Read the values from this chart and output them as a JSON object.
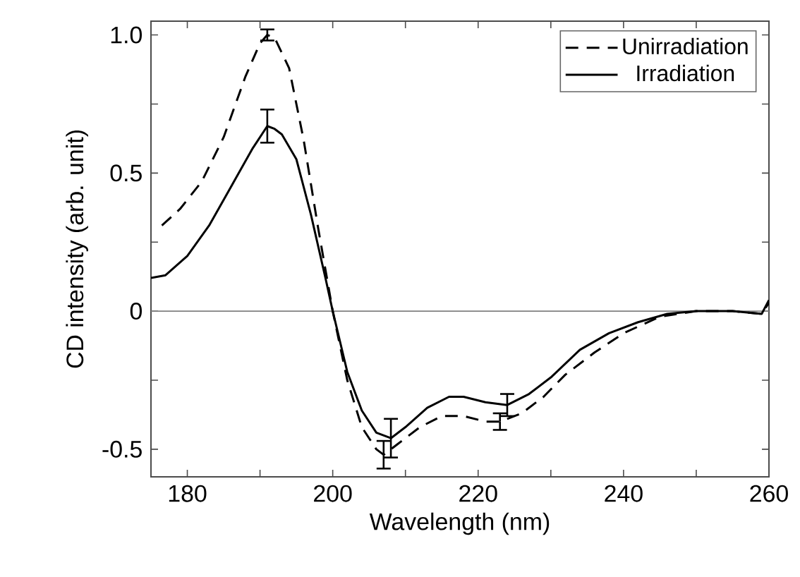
{
  "chart_data": {
    "type": "line",
    "xlabel": "Wavelength (nm)",
    "ylabel": "CD intensity (arb. unit)",
    "xlim": [
      175,
      260
    ],
    "ylim": [
      -0.6,
      1.05
    ],
    "xticks": [
      180,
      {
        "value": 190,
        "label": null
      },
      200,
      {
        "value": 210,
        "label": null
      },
      220,
      {
        "value": 230,
        "label": null
      },
      240,
      {
        "value": 250,
        "label": null
      },
      260
    ],
    "yticks": [
      {
        "value": -0.5,
        "label": "-0.5"
      },
      {
        "value": -0.25,
        "label": null
      },
      0,
      {
        "value": 0.25,
        "label": null
      },
      0.5,
      {
        "value": 0.75,
        "label": null
      },
      {
        "value": 1,
        "label": "1.0"
      }
    ],
    "legend": "top right",
    "grid": false,
    "ref_lines": [
      {
        "axis": "y",
        "value": 0,
        "color": "#808080"
      }
    ],
    "series": [
      {
        "name": "Unirradiation",
        "color": "#000000",
        "line_style": "dashed",
        "x": [
          176.5,
          179,
          182,
          185,
          188,
          190,
          191,
          192,
          194,
          196,
          198,
          200,
          202,
          204,
          206,
          207,
          209,
          212,
          215,
          218,
          221,
          223,
          226,
          229,
          232,
          236,
          240,
          245,
          250,
          255,
          259,
          260
        ],
        "values": [
          0.31,
          0.37,
          0.47,
          0.63,
          0.85,
          0.97,
          1.0,
          0.99,
          0.88,
          0.62,
          0.3,
          0.0,
          -0.25,
          -0.42,
          -0.5,
          -0.52,
          -0.48,
          -0.42,
          -0.38,
          -0.38,
          -0.4,
          -0.4,
          -0.37,
          -0.31,
          -0.23,
          -0.15,
          -0.08,
          -0.02,
          0.0,
          0.0,
          -0.01,
          0.03
        ],
        "errors": [
          null,
          null,
          null,
          null,
          null,
          null,
          0.02,
          null,
          null,
          null,
          null,
          null,
          null,
          null,
          null,
          0.05,
          null,
          null,
          null,
          null,
          null,
          0.03,
          null,
          null,
          null,
          null,
          null,
          null,
          null,
          null,
          null,
          null
        ]
      },
      {
        "name": "Irradiation",
        "color": "#000000",
        "line_style": "solid",
        "x": [
          175,
          177,
          180,
          183,
          186,
          189,
          191,
          192,
          193,
          195,
          197,
          199,
          200,
          202,
          204,
          206,
          208,
          210,
          213,
          216,
          218,
          221,
          224,
          227,
          230,
          234,
          238,
          242,
          246,
          250,
          255,
          259,
          260
        ],
        "values": [
          0.12,
          0.13,
          0.2,
          0.31,
          0.45,
          0.59,
          0.67,
          0.66,
          0.64,
          0.55,
          0.35,
          0.12,
          0.0,
          -0.22,
          -0.36,
          -0.44,
          -0.46,
          -0.42,
          -0.35,
          -0.31,
          -0.31,
          -0.33,
          -0.34,
          -0.3,
          -0.24,
          -0.14,
          -0.08,
          -0.04,
          -0.01,
          0.0,
          0.0,
          -0.01,
          0.04
        ],
        "errors": [
          null,
          null,
          null,
          null,
          null,
          null,
          0.06,
          null,
          null,
          null,
          null,
          null,
          null,
          null,
          null,
          null,
          0.07,
          null,
          null,
          null,
          null,
          null,
          0.04,
          null,
          null,
          null,
          null,
          null,
          null,
          null,
          null,
          null,
          null
        ]
      }
    ]
  }
}
